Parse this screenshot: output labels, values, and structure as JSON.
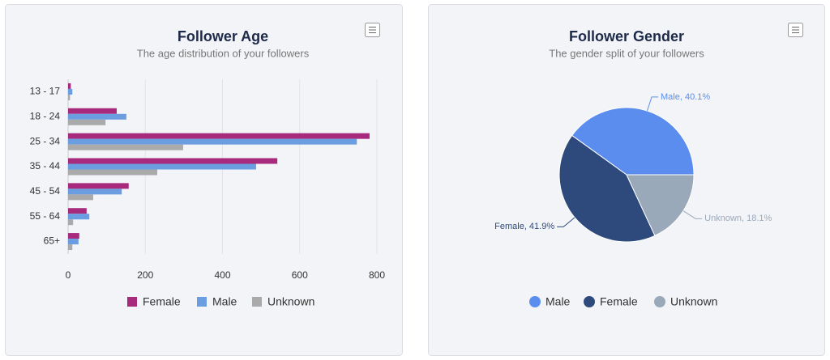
{
  "chart_data": [
    {
      "type": "hbar",
      "title": "Follower Age",
      "subtitle": "The age distribution of your followers",
      "categories": [
        "13 - 17",
        "18 - 24",
        "25 - 34",
        "35 - 44",
        "45 - 54",
        "55 - 64",
        "65+"
      ],
      "series": [
        {
          "name": "Female",
          "color": "#a82a7c",
          "values": [
            7,
            126,
            781,
            542,
            157,
            48,
            29
          ]
        },
        {
          "name": "Male",
          "color": "#6a9ee0",
          "values": [
            11,
            151,
            748,
            487,
            139,
            55,
            27
          ]
        },
        {
          "name": "Unknown",
          "color": "#aaaaaa",
          "values": [
            5,
            97,
            298,
            231,
            65,
            13,
            11
          ]
        }
      ],
      "xlim": [
        0,
        800
      ],
      "xticks": [
        0,
        200,
        400,
        600,
        800
      ],
      "grid": true
    },
    {
      "type": "pie",
      "title": "Follower Gender",
      "subtitle": "The gender split of your followers",
      "categories": [
        "Male",
        "Female",
        "Unknown"
      ],
      "values": [
        40.1,
        41.9,
        18.1
      ],
      "value_labels": [
        "Male, 40.1%",
        "Female, 41.9%",
        "Unknown, 18.1%"
      ],
      "colors": [
        "#5b8def",
        "#2e4a7d",
        "#9aa9ba"
      ]
    }
  ]
}
